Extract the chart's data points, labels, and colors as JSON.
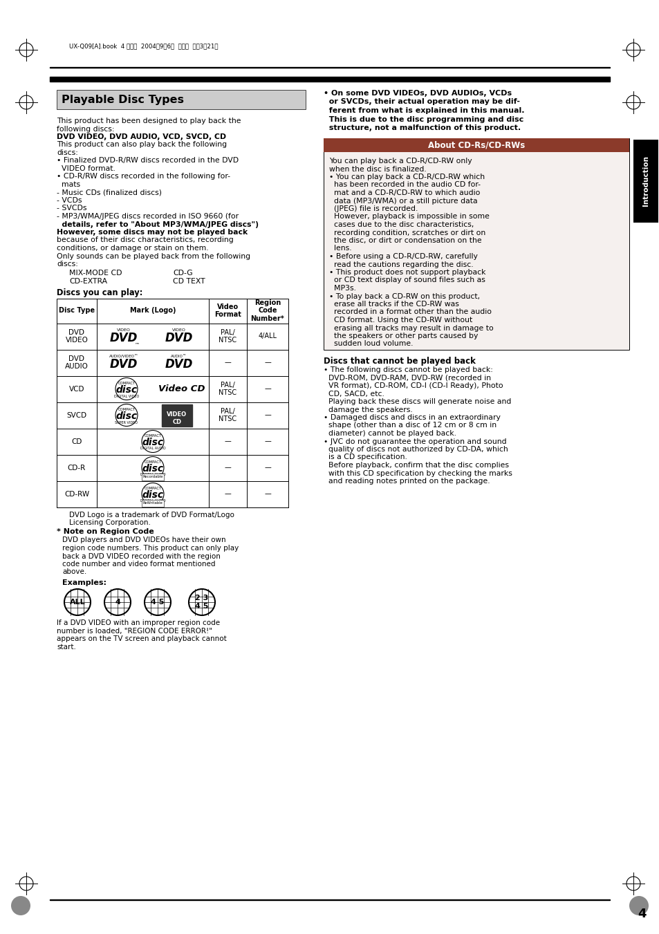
{
  "page_bg": "#ffffff",
  "title": "Playable Disc Types",
  "title_bg": "#cccccc",
  "header_text": "UX-Q09[A].book  4 ページ  2004年9朎6日  月曜日  午後3時21分",
  "body_lines": [
    "This product has been designed to play back the",
    "following discs:",
    "DVD VIDEO, DVD AUDIO, VCD, SVCD, CD",
    "This product can also play back the following",
    "discs:",
    "• Finalized DVD-R/RW discs recorded in the DVD",
    "  VIDEO format.",
    "• CD-R/RW discs recorded in the following for-",
    "  mats",
    "- Music CDs (finalized discs)",
    "- VCDs",
    "- SVCDs",
    "- MP3/WMA/JPEG discs recorded in ISO 9660 (for",
    "  details, refer to \"About MP3/WMA/JPEG discs\")",
    "However, some discs may not be played back",
    "because of their disc characteristics, recording",
    "conditions, or damage or stain on them.",
    "Only sounds can be played back from the following",
    "discs:"
  ],
  "bold_line_indices": [
    2,
    13,
    14
  ],
  "mixmode_left": "MIX-MODE CD",
  "mixmode_right": "CD-G",
  "cdextra_left": "CD-EXTRA",
  "cdextra_right": "CD TEXT",
  "discs_label": "Discs you can play:",
  "table_col_headers": [
    "Disc Type",
    "Mark (Logo)",
    "Video\nFormat",
    "Region\nCode\nNumber*"
  ],
  "table_disc_types": [
    "DVD\nVIDEO",
    "DVD\nAUDIO",
    "VCD",
    "SVCD",
    "CD",
    "CD-R",
    "CD-RW"
  ],
  "table_video_formats": [
    "PAL/\nNTSC",
    "—",
    "PAL/\nNTSC",
    "PAL/\nNTSC",
    "—",
    "—",
    "—"
  ],
  "table_region_codes": [
    "4/ALL",
    "—",
    "—",
    "—",
    "—",
    "—",
    "—"
  ],
  "dvd_note": "DVD Logo is a trademark of DVD Format/Logo\nLicensing Corporation.",
  "region_note_title": "* Note on Region Code",
  "region_note_body": [
    "DVD players and DVD VIDEOs have their own",
    "region code numbers. This product can only play",
    "back a DVD VIDEO recorded with the region",
    "code number and video format mentioned",
    "above."
  ],
  "examples_label": "Examples:",
  "region_icons": [
    "ALL",
    "4",
    "4 5",
    "2 3\n4 5"
  ],
  "region_error_text": "If a DVD VIDEO with an improper region code\nnumber is loaded, \"REGION CODE ERROR!\"\nappears on the TV screen and playback cannot\nstart.",
  "bold_top_right": [
    "• On some DVD VIDEOs, DVD AUDIOs, VCDs",
    "  or SVCDs, their actual operation may be dif-",
    "  ferent from what is explained in this manual.",
    "  This is due to the disc programming and disc",
    "  structure, not a malfunction of this product."
  ],
  "cdrw_box_title": "About CD-Rs/CD-RWs",
  "cdrw_box_title_bg": "#8B3A2A",
  "cdrw_box_bg": "#f5f0ee",
  "cdrw_lines": [
    "You can play back a CD-R/CD-RW only",
    "when the disc is finalized.",
    "• You can play back a CD-R/CD-RW which",
    "  has been recorded in the audio CD for-",
    "  mat and a CD-R/CD-RW to which audio",
    "  data (MP3/WMA) or a still picture data",
    "  (JPEG) file is recorded.",
    "  However, playback is impossible in some",
    "  cases due to the disc characteristics,",
    "  recording condition, scratches or dirt on",
    "  the disc, or dirt or condensation on the",
    "  lens.",
    "• Before using a CD-R/CD-RW, carefully",
    "  read the cautions regarding the disc.",
    "• This product does not support playback",
    "  or CD text display of sound files such as",
    "  MP3s.",
    "• To play back a CD-RW on this product,",
    "  erase all tracks if the CD-RW was",
    "  recorded in a format other than the audio",
    "  CD format. Using the CD-RW without",
    "  erasing all tracks may result in damage to",
    "  the speakers or other parts caused by",
    "  sudden loud volume."
  ],
  "cannot_play_title": "Discs that cannot be played back",
  "cannot_play_lines": [
    "• The following discs cannot be played back:",
    "  DVD-ROM, DVD-RAM, DVD-RW (recorded in",
    "  VR format), CD-ROM, CD-I (CD-I Ready), Photo",
    "  CD, SACD, etc.",
    "  Playing back these discs will generate noise and",
    "  damage the speakers.",
    "• Damaged discs and discs in an extraordinary",
    "  shape (other than a disc of 12 cm or 8 cm in",
    "  diameter) cannot be played back.",
    "• JVC do not guarantee the operation and sound",
    "  quality of discs not authorized by CD-DA, which",
    "  is a CD specification.",
    "  Before playback, confirm that the disc complies",
    "  with this CD specification by checking the marks",
    "  and reading notes printed on the package."
  ],
  "page_number": "4",
  "intro_tab": "Introduction"
}
